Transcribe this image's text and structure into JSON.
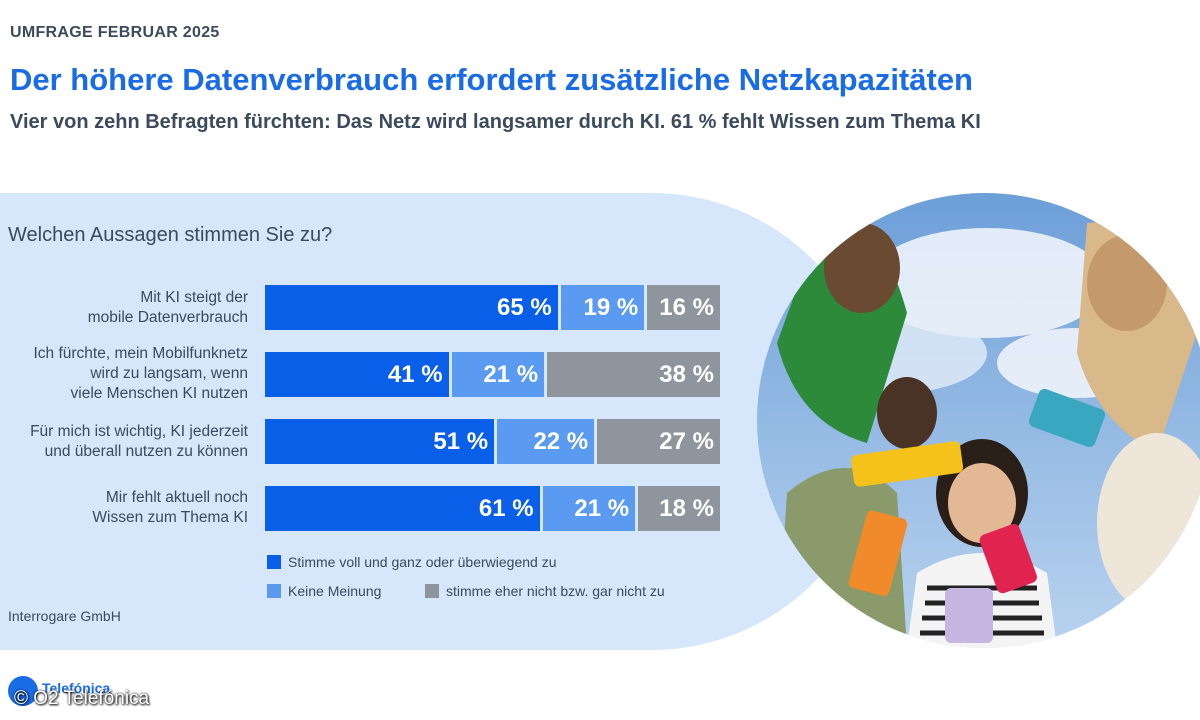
{
  "header": {
    "eyebrow": "UMFRAGE FEBRUAR 2025",
    "title": "Der höhere Datenverbrauch erfordert zusätzliche Netzkapazitäten",
    "subtitle": "Vier von zehn Befragten fürchten: Das Netz wird langsamer durch KI. 61 % fehlt Wissen zum Thema KI"
  },
  "colors": {
    "agree": "#0a5fe8",
    "neutral": "#5a9af0",
    "disagree": "#8f959c",
    "panel": "#d6e6fb",
    "title": "#1a6be6"
  },
  "chart_data": {
    "type": "bar",
    "orientation": "horizontal",
    "stacked": true,
    "title": "Welchen Aussagen stimmen Sie zu?",
    "categories": [
      "Mit KI steigt der mobile Datenverbrauch",
      "Ich fürchte, mein Mobilfunknetz wird zu langsam, wenn viele Menschen KI nutzen",
      "Für mich ist wichtig, KI jederzeit und überall nutzen zu können",
      "Mir fehlt aktuell noch Wissen zum Thema KI"
    ],
    "series": [
      {
        "name": "Stimme voll und ganz oder überwiegend zu",
        "values": [
          65,
          41,
          51,
          61
        ]
      },
      {
        "name": "Keine Meinung",
        "values": [
          19,
          21,
          22,
          21
        ]
      },
      {
        "name": "stimme eher nicht bzw. gar nicht zu",
        "values": [
          16,
          38,
          27,
          18
        ]
      }
    ],
    "value_labels": [
      [
        "65 %",
        "19 %",
        "16 %"
      ],
      [
        "41 %",
        "21 %",
        "38 %"
      ],
      [
        "51 %",
        "22 %",
        "27 %"
      ],
      [
        "61 %",
        "21 %",
        "18 %"
      ]
    ],
    "xlim": [
      0,
      100
    ],
    "legend_position": "bottom"
  },
  "legend": {
    "agree": "Stimme voll und ganz oder überwiegend zu",
    "neutral": "Keine Meinung",
    "disagree": "stimme eher nicht bzw. gar nicht zu"
  },
  "labels": [
    [
      "Mit KI steigt der",
      "mobile Datenverbrauch"
    ],
    [
      "Ich fürchte, mein Mobilfunknetz",
      "wird zu langsam, wenn",
      "viele Menschen KI nutzen"
    ],
    [
      "Für mich ist wichtig, KI jederzeit",
      "und überall nutzen zu können"
    ],
    [
      "Mir fehlt aktuell noch",
      "Wissen zum Thema KI"
    ]
  ],
  "source": "Interrogare GmbH",
  "brand": {
    "name": "Telefónica",
    "copyright": "© O2 Telefónica"
  }
}
